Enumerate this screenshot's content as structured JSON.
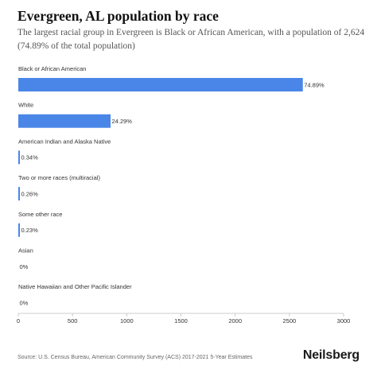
{
  "header": {
    "title": "Evergreen, AL population by race",
    "subtitle": "The largest racial group in Evergreen is Black or African American, with a population of 2,624 (74.89% of the total population)"
  },
  "footer": {
    "source": "Source: U.S. Census Bureau, American Community Survey (ACS) 2017-2021 5-Year Estimates",
    "brand": "Neilsberg"
  },
  "colors": {
    "bar": "#4a86e8",
    "axis": "#cccccc",
    "text": "#333333"
  },
  "chart_data": {
    "type": "bar",
    "orientation": "horizontal",
    "categories": [
      "Black or African American",
      "White",
      "American Indian and Alaska Native",
      "Two or more races (multiracial)",
      "Some other race",
      "Asian",
      "Native Hawaiian and Other Pacific Islander"
    ],
    "values": [
      2624,
      851,
      12,
      9,
      8,
      0,
      0
    ],
    "labels": [
      "74.89%",
      "24.29%",
      "0.34%",
      "0.26%",
      "0.23%",
      "0%",
      "0%"
    ],
    "xlim": [
      0,
      3000
    ],
    "xticks": [
      0,
      500,
      1000,
      1500,
      2000,
      2500,
      3000
    ],
    "grid": false,
    "legend": "none"
  }
}
